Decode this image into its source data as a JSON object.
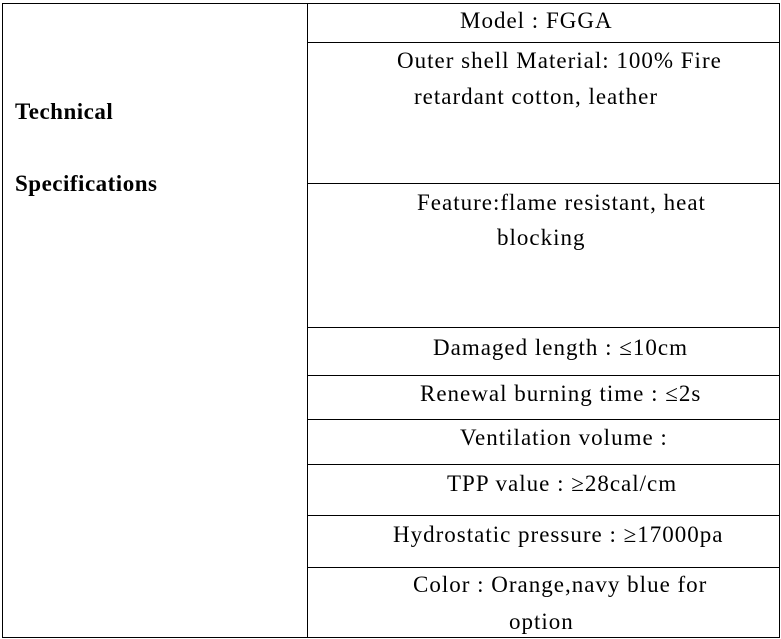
{
  "heading": {
    "line1": "Technical",
    "line2": "Specifications"
  },
  "specs": [
    {
      "lines": [
        "Model : FGGA"
      ]
    },
    {
      "lines": [
        "Outer shell Material: 100% Fire",
        "retardant cotton, leather"
      ]
    },
    {
      "lines": [
        "Feature:flame resistant, heat",
        "blocking"
      ]
    },
    {
      "lines": [
        "Damaged length : ≤10cm"
      ]
    },
    {
      "lines": [
        "Renewal burning time : ≤2s"
      ]
    },
    {
      "lines": [
        "Ventilation volume :"
      ]
    },
    {
      "lines": [
        "TPP value : ≥28cal/cm"
      ]
    },
    {
      "lines": [
        "Hydrostatic pressure : ≥17000pa"
      ]
    },
    {
      "lines": [
        "Color : Orange,navy blue for",
        "option"
      ]
    }
  ]
}
